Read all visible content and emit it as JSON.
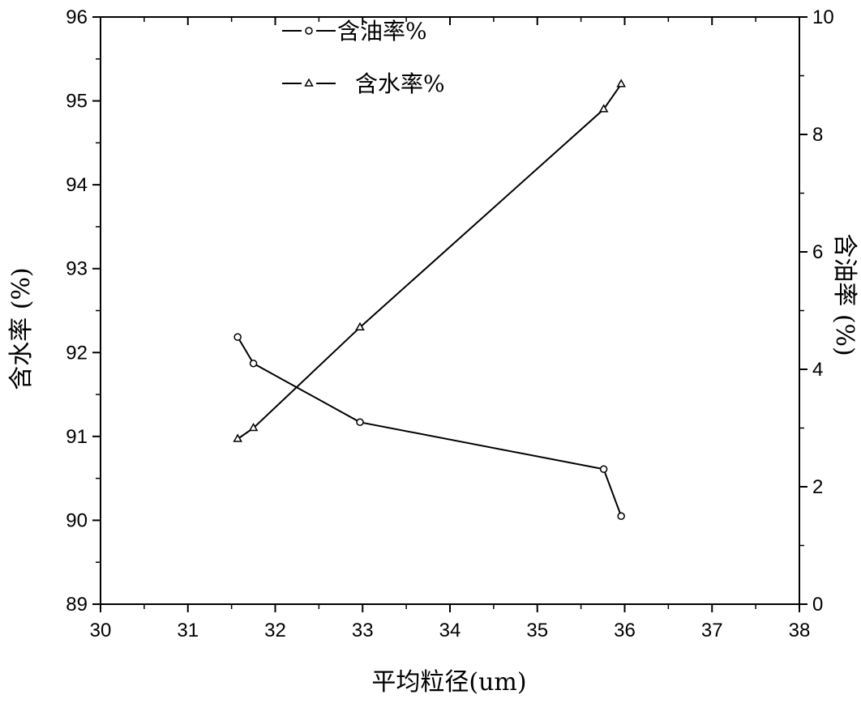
{
  "chart_data": {
    "type": "line",
    "xlabel": "平均粒径(um)",
    "ylabel_left": "含水率 (%)",
    "ylabel_right": "含油率 (%)",
    "xlim": [
      30,
      38
    ],
    "ylim_left": [
      89,
      96
    ],
    "ylim_right": [
      0,
      10
    ],
    "x_ticks": [
      "30",
      "31",
      "32",
      "33",
      "34",
      "35",
      "36",
      "37",
      "38"
    ],
    "y_left_ticks": [
      "89",
      "90",
      "91",
      "92",
      "93",
      "94",
      "95",
      "96"
    ],
    "y_right_ticks": [
      "0",
      "2",
      "4",
      "6",
      "8",
      "10"
    ],
    "legend_placement": "top-center",
    "series": [
      {
        "name": "含油率%",
        "legend_label": "—o—含油率%",
        "axis": "right",
        "marker": "circle",
        "x": [
          31.57,
          31.75,
          32.97,
          35.76,
          35.96
        ],
        "y": [
          4.55,
          4.1,
          3.1,
          2.3,
          1.5
        ]
      },
      {
        "name": "含水率%",
        "legend_label": "—△—  含水率%",
        "axis": "left",
        "marker": "triangle",
        "x": [
          31.57,
          31.75,
          32.97,
          35.76,
          35.96
        ],
        "y": [
          90.97,
          91.1,
          92.3,
          94.9,
          95.2
        ]
      }
    ],
    "grid": false,
    "line_color": "#000000"
  }
}
